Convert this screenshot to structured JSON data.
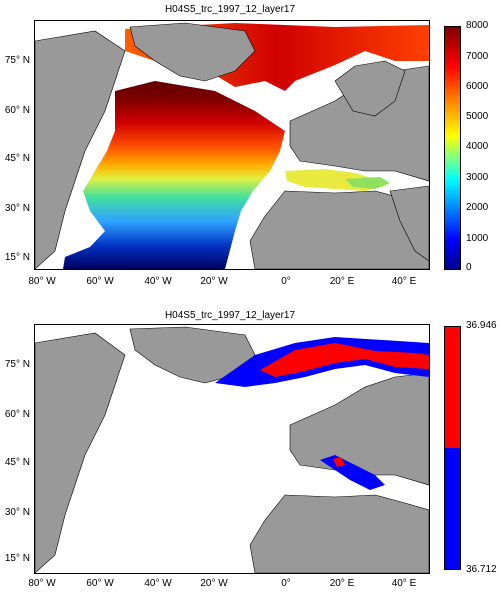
{
  "maps": [
    {
      "title": "H04S5_trc_1997_12_layer17",
      "lat_labels": [
        "75° N",
        "60° N",
        "45° N",
        "30° N",
        "15° N"
      ],
      "lon_labels": [
        "80° W",
        "60° W",
        "40° W",
        "20° W",
        "0°",
        "20° E",
        "40° E"
      ],
      "colorbar": {
        "type": "continuous",
        "colormap": "jet",
        "ticks": [
          "8000",
          "7000",
          "6000",
          "5000",
          "4000",
          "3000",
          "2000",
          "1000",
          "0"
        ]
      }
    },
    {
      "title": "H04S5_trc_1997_12_layer17",
      "lat_labels": [
        "75° N",
        "60° N",
        "45° N",
        "30° N",
        "15° N"
      ],
      "lon_labels": [
        "80° W",
        "60° W",
        "40° W",
        "20° W",
        "0°",
        "20° E",
        "40° E"
      ],
      "colorbar": {
        "type": "two-class",
        "max_label": "36.946",
        "min_label": "36.712",
        "colors": [
          "#ff0000",
          "#0000ff"
        ]
      }
    }
  ],
  "colors": {
    "land": "#999999",
    "nodata": "#ffffff",
    "high_class": "#ff0000",
    "low_class": "#0000ff"
  }
}
